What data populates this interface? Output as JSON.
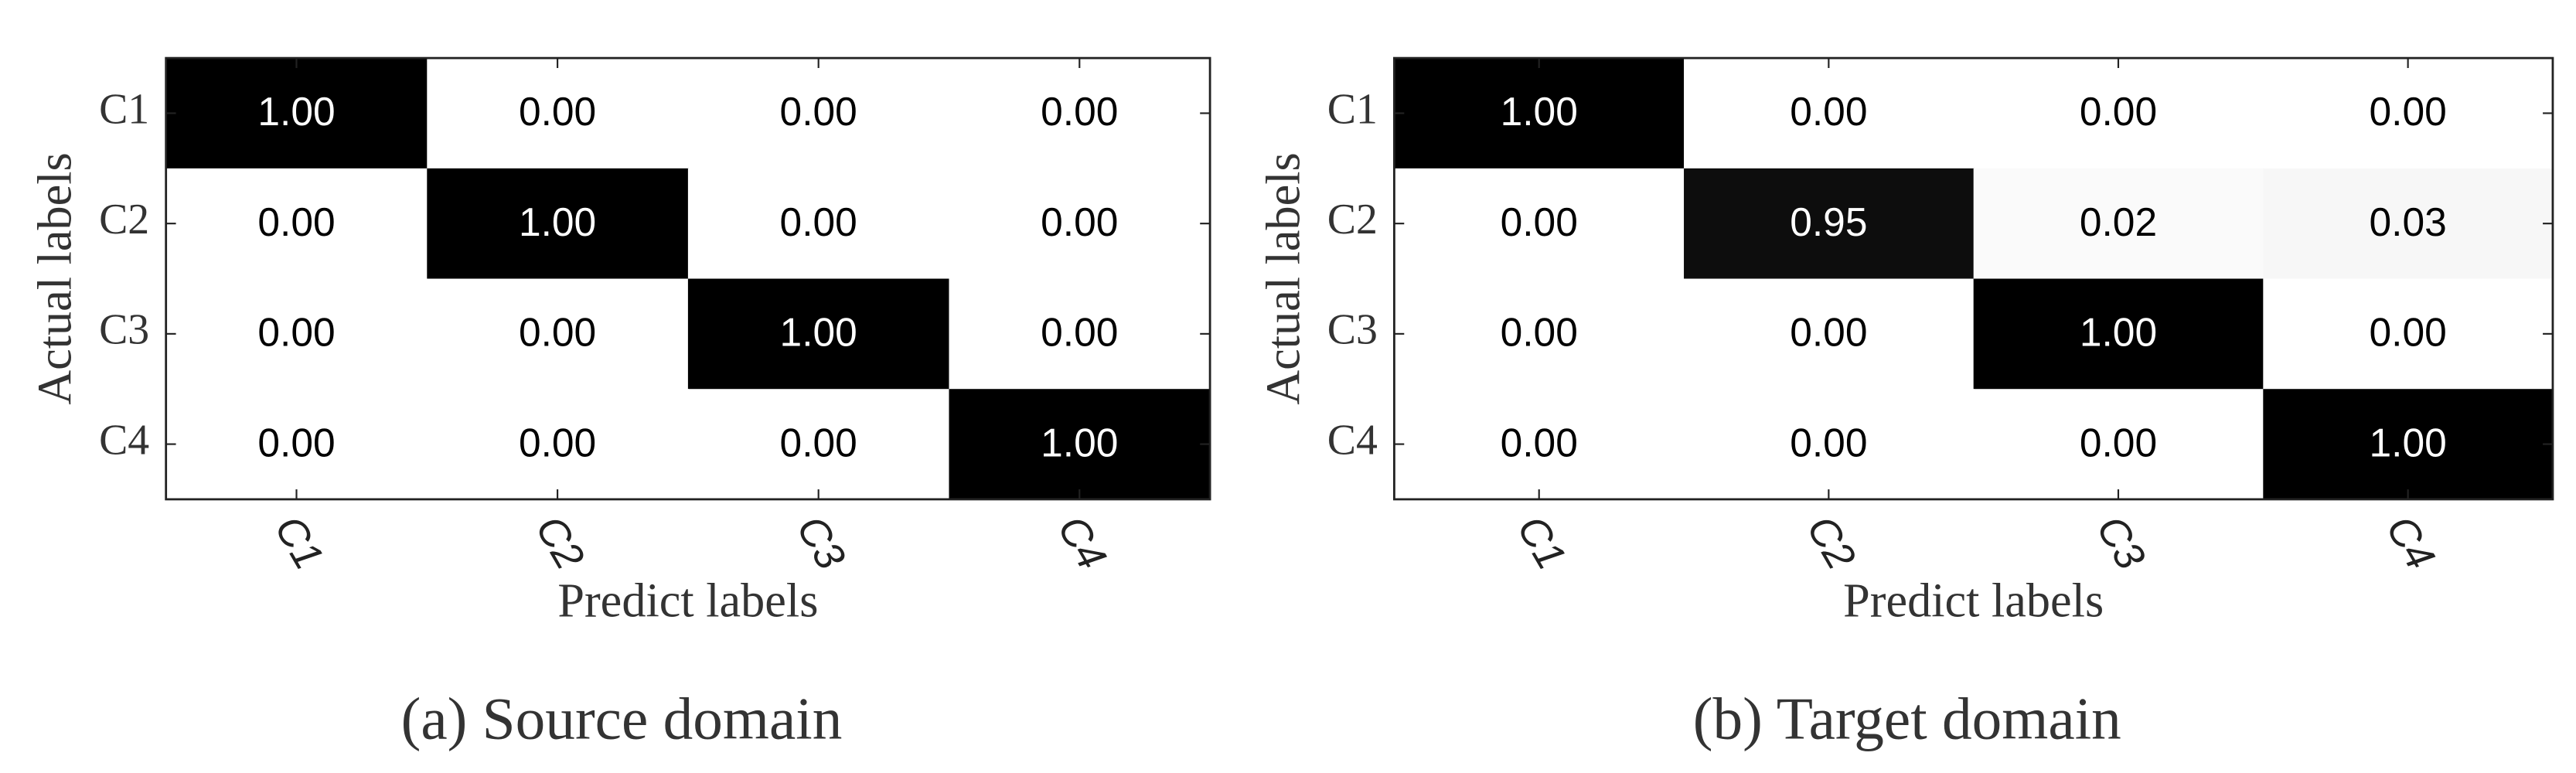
{
  "chart_data": [
    {
      "type": "heatmap",
      "caption": "(a) Source domain",
      "x_label": "Predict labels",
      "y_label": "Actual labels",
      "x_categories": [
        "C1",
        "C2",
        "C3",
        "C4"
      ],
      "y_categories": [
        "C1",
        "C2",
        "C3",
        "C4"
      ],
      "values": [
        [
          1,
          0,
          0,
          0
        ],
        [
          0,
          1,
          0,
          0
        ],
        [
          0,
          0,
          1,
          0
        ],
        [
          0,
          0,
          0,
          1
        ]
      ],
      "value_labels": [
        [
          "1.00",
          "0.00",
          "0.00",
          "0.00"
        ],
        [
          "0.00",
          "1.00",
          "0.00",
          "0.00"
        ],
        [
          "0.00",
          "0.00",
          "1.00",
          "0.00"
        ],
        [
          "0.00",
          "0.00",
          "0.00",
          "1.00"
        ]
      ],
      "clim": [
        0,
        1
      ],
      "colormap": [
        "#ffffff",
        "#000000"
      ]
    },
    {
      "type": "heatmap",
      "caption": "(b) Target domain",
      "x_label": "Predict labels",
      "y_label": "Actual labels",
      "x_categories": [
        "C1",
        "C2",
        "C3",
        "C4"
      ],
      "y_categories": [
        "C1",
        "C2",
        "C3",
        "C4"
      ],
      "values": [
        [
          1,
          0,
          0,
          0
        ],
        [
          0,
          0.95,
          0.02,
          0.03
        ],
        [
          0,
          0,
          1,
          0
        ],
        [
          0,
          0,
          0,
          1
        ]
      ],
      "value_labels": [
        [
          "1.00",
          "0.00",
          "0.00",
          "0.00"
        ],
        [
          "0.00",
          "0.95",
          "0.02",
          "0.03"
        ],
        [
          "0.00",
          "0.00",
          "1.00",
          "0.00"
        ],
        [
          "0.00",
          "0.00",
          "0.00",
          "1.00"
        ]
      ],
      "clim": [
        0,
        1
      ],
      "colormap": [
        "#ffffff",
        "#000000"
      ]
    }
  ]
}
